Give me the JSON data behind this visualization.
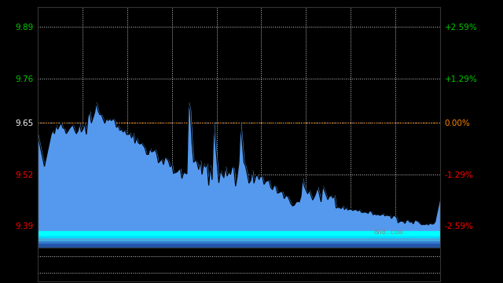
{
  "bg_color": "#000000",
  "y_left_ticks": [
    9.39,
    9.52,
    9.65,
    9.76,
    9.89
  ],
  "y_right_ticks": [
    "-2.59%",
    "-1.29%",
    "0.00%",
    "+1.29%",
    "+2.59%"
  ],
  "y_right_colors": [
    "#ff0000",
    "#ff0000",
    "#ff8800",
    "#00cc00",
    "#00cc00"
  ],
  "y_left_colors": [
    "#ff0000",
    "#ff0000",
    "#ffffff",
    "#00cc00",
    "#00cc00"
  ],
  "grid_color": "#ffffff",
  "ref_line_y": 9.65,
  "ref_line_color": "#ff8800",
  "watermark": "8n8.com",
  "watermark_color": "#888888",
  "fill_color_main": "#5599ee",
  "ylim": [
    9.335,
    9.94
  ],
  "xlim": [
    0,
    240
  ],
  "stripe_colors": [
    "#2255aa",
    "#3377cc",
    "#44aadd",
    "#00ddff",
    "#00ffff"
  ],
  "stripe_bottoms": [
    9.335,
    9.347,
    9.354,
    9.361,
    9.368
  ],
  "stripe_tops": [
    9.347,
    9.354,
    9.361,
    9.368,
    9.376
  ]
}
